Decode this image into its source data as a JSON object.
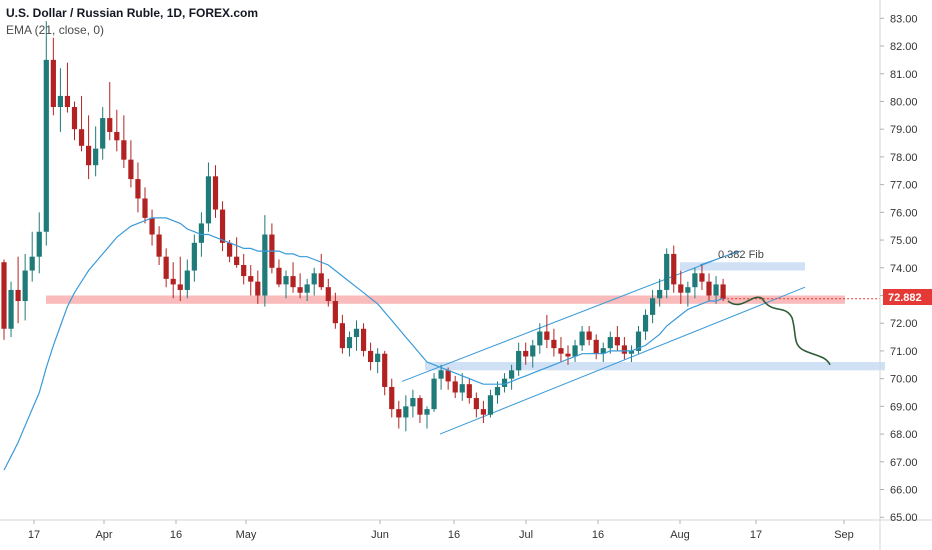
{
  "header": {
    "title": "U.S. Dollar / Russian Ruble, 1D, FOREX.com",
    "indicator": "EMA (21, close, 0)"
  },
  "price_tag": {
    "value": "72.882",
    "color": "#e53935"
  },
  "annotations": {
    "fib_label": "0.382 Fib"
  },
  "colors": {
    "up": "#1f7a7a",
    "down": "#b22222",
    "ema": "#3a9ad9",
    "support_zone": "#f8b4b4",
    "demand_zone": "#c8dcf5",
    "projection": "#2e5c35"
  },
  "chart_data": {
    "type": "candlestick",
    "title": "U.S. Dollar / Russian Ruble, 1D, FOREX.com",
    "x_tick_labels": [
      "17",
      "Apr",
      "16",
      "May",
      "Jun",
      "16",
      "Jul",
      "16",
      "Aug",
      "17",
      "Sep"
    ],
    "y_ticks": [
      65,
      66,
      67,
      68,
      69,
      70,
      71,
      72,
      73,
      74,
      75,
      76,
      77,
      78,
      79,
      80,
      81,
      82,
      83
    ],
    "ylim": [
      64.9,
      83.3
    ],
    "series": [
      {
        "name": "USD/RUB",
        "ohlc": [
          [
            74.2,
            74.3,
            71.4,
            71.8
          ],
          [
            71.8,
            73.5,
            71.5,
            73.2
          ],
          [
            73.2,
            74.4,
            72.0,
            72.8
          ],
          [
            72.8,
            74.5,
            72.1,
            73.9
          ],
          [
            73.9,
            75.3,
            73.5,
            74.4
          ],
          [
            74.4,
            76.0,
            73.8,
            75.3
          ],
          [
            75.3,
            82.9,
            74.8,
            81.5
          ],
          [
            81.5,
            82.3,
            79.5,
            79.8
          ],
          [
            79.8,
            81.2,
            78.9,
            80.2
          ],
          [
            80.2,
            81.4,
            79.6,
            79.8
          ],
          [
            79.8,
            80.0,
            78.6,
            79.0
          ],
          [
            79.0,
            80.2,
            78.2,
            78.4
          ],
          [
            78.4,
            79.5,
            77.2,
            77.7
          ],
          [
            77.7,
            79.1,
            77.3,
            78.3
          ],
          [
            78.3,
            79.8,
            77.9,
            79.4
          ],
          [
            79.4,
            80.7,
            78.6,
            78.9
          ],
          [
            78.9,
            79.7,
            78.2,
            78.6
          ],
          [
            78.6,
            79.5,
            77.6,
            77.9
          ],
          [
            77.9,
            78.6,
            76.9,
            77.2
          ],
          [
            77.2,
            77.8,
            76.0,
            76.5
          ],
          [
            76.5,
            76.9,
            75.6,
            75.8
          ],
          [
            75.8,
            76.1,
            74.8,
            75.2
          ],
          [
            75.2,
            75.5,
            74.1,
            74.4
          ],
          [
            74.4,
            74.7,
            73.3,
            73.6
          ],
          [
            73.6,
            74.2,
            72.9,
            73.4
          ],
          [
            73.4,
            74.4,
            72.8,
            73.2
          ],
          [
            73.2,
            74.3,
            72.9,
            73.9
          ],
          [
            73.9,
            75.2,
            73.5,
            74.9
          ],
          [
            74.9,
            76.0,
            74.4,
            75.6
          ],
          [
            75.6,
            77.8,
            75.3,
            77.3
          ],
          [
            77.3,
            77.7,
            75.8,
            76.1
          ],
          [
            76.1,
            76.4,
            74.6,
            74.9
          ],
          [
            74.9,
            75.0,
            74.2,
            74.4
          ],
          [
            74.4,
            75.1,
            74.0,
            74.1
          ],
          [
            74.1,
            74.5,
            73.4,
            73.7
          ],
          [
            73.7,
            74.1,
            73.0,
            73.5
          ],
          [
            73.5,
            73.9,
            72.7,
            73.0
          ],
          [
            73.0,
            75.9,
            72.6,
            75.2
          ],
          [
            75.2,
            75.6,
            73.8,
            74.0
          ],
          [
            74.0,
            74.3,
            73.3,
            73.4
          ],
          [
            73.4,
            73.9,
            72.9,
            73.7
          ],
          [
            73.7,
            74.2,
            73.1,
            73.3
          ],
          [
            73.3,
            73.8,
            72.9,
            73.1
          ],
          [
            73.1,
            73.6,
            72.8,
            73.4
          ],
          [
            73.4,
            74.0,
            73.0,
            73.8
          ],
          [
            73.8,
            74.5,
            73.2,
            73.3
          ],
          [
            73.3,
            73.6,
            72.6,
            72.8
          ],
          [
            72.8,
            73.1,
            71.8,
            72.0
          ],
          [
            72.0,
            72.3,
            70.9,
            71.1
          ],
          [
            71.1,
            71.7,
            70.8,
            71.5
          ],
          [
            71.5,
            72.1,
            71.0,
            71.8
          ],
          [
            71.8,
            72.0,
            70.8,
            71.0
          ],
          [
            71.0,
            71.3,
            70.3,
            70.6
          ],
          [
            70.6,
            71.1,
            70.2,
            70.9
          ],
          [
            70.9,
            71.0,
            69.4,
            69.7
          ],
          [
            69.7,
            70.0,
            68.6,
            68.9
          ],
          [
            68.9,
            69.2,
            68.2,
            68.6
          ],
          [
            68.6,
            69.4,
            68.1,
            69.0
          ],
          [
            69.0,
            69.6,
            68.6,
            69.3
          ],
          [
            69.3,
            69.4,
            68.4,
            68.7
          ],
          [
            68.7,
            69.0,
            68.2,
            68.9
          ],
          [
            68.9,
            70.2,
            68.8,
            70.0
          ],
          [
            70.0,
            70.5,
            69.6,
            70.3
          ],
          [
            70.3,
            70.4,
            69.6,
            69.9
          ],
          [
            69.9,
            70.1,
            69.3,
            69.5
          ],
          [
            69.5,
            70.2,
            69.2,
            69.8
          ],
          [
            69.8,
            70.0,
            69.1,
            69.3
          ],
          [
            69.3,
            69.5,
            68.6,
            68.9
          ],
          [
            68.9,
            69.2,
            68.4,
            68.7
          ],
          [
            68.7,
            69.6,
            68.6,
            69.4
          ],
          [
            69.4,
            69.9,
            69.1,
            69.7
          ],
          [
            69.7,
            70.2,
            69.5,
            70.0
          ],
          [
            70.0,
            70.5,
            69.6,
            70.3
          ],
          [
            70.3,
            71.3,
            70.1,
            71.0
          ],
          [
            71.0,
            71.3,
            70.5,
            70.8
          ],
          [
            70.8,
            71.4,
            70.4,
            71.2
          ],
          [
            71.2,
            72.0,
            70.9,
            71.7
          ],
          [
            71.7,
            72.3,
            71.1,
            71.4
          ],
          [
            71.4,
            71.8,
            70.8,
            71.1
          ],
          [
            71.1,
            71.5,
            70.6,
            70.9
          ],
          [
            70.9,
            71.2,
            70.5,
            70.8
          ],
          [
            70.8,
            71.4,
            70.6,
            71.2
          ],
          [
            71.2,
            71.9,
            71.0,
            71.7
          ],
          [
            71.7,
            71.9,
            71.2,
            71.4
          ],
          [
            71.4,
            71.6,
            70.7,
            70.9
          ],
          [
            70.9,
            71.3,
            70.6,
            71.1
          ],
          [
            71.1,
            71.7,
            70.9,
            71.5
          ],
          [
            71.5,
            71.9,
            71.0,
            71.2
          ],
          [
            71.2,
            71.5,
            70.7,
            70.9
          ],
          [
            70.9,
            71.2,
            70.6,
            71.0
          ],
          [
            71.0,
            71.9,
            70.9,
            71.7
          ],
          [
            71.7,
            72.5,
            71.4,
            72.3
          ],
          [
            72.3,
            73.2,
            72.0,
            72.9
          ],
          [
            72.9,
            73.6,
            72.6,
            73.2
          ],
          [
            73.2,
            74.7,
            72.9,
            74.5
          ],
          [
            74.5,
            74.8,
            73.1,
            73.4
          ],
          [
            73.4,
            73.9,
            72.7,
            73.1
          ],
          [
            73.1,
            73.5,
            72.6,
            73.3
          ],
          [
            73.3,
            74.0,
            72.9,
            73.8
          ],
          [
            73.8,
            74.1,
            73.2,
            73.5
          ],
          [
            73.5,
            73.8,
            72.8,
            73.0
          ],
          [
            73.0,
            73.7,
            72.7,
            73.4
          ],
          [
            73.4,
            73.6,
            72.8,
            72.882
          ]
        ]
      },
      {
        "name": "EMA (21, close, 0)",
        "values": [
          66.7,
          67.2,
          67.7,
          68.3,
          68.9,
          69.5,
          70.4,
          71.2,
          71.9,
          72.6,
          73.1,
          73.5,
          73.9,
          74.2,
          74.5,
          74.8,
          75.1,
          75.3,
          75.5,
          75.6,
          75.7,
          75.8,
          75.8,
          75.8,
          75.7,
          75.6,
          75.4,
          75.3,
          75.2,
          75.2,
          75.1,
          75.0,
          74.9,
          74.8,
          74.7,
          74.7,
          74.6,
          74.6,
          74.6,
          74.6,
          74.5,
          74.5,
          74.4,
          74.4,
          74.3,
          74.2,
          74.1,
          73.9,
          73.7,
          73.5,
          73.3,
          73.1,
          72.9,
          72.7,
          72.4,
          72.1,
          71.8,
          71.5,
          71.2,
          70.9,
          70.6,
          70.5,
          70.4,
          70.3,
          70.2,
          70.1,
          70.0,
          69.9,
          69.8,
          69.8,
          69.8,
          69.8,
          69.9,
          70.0,
          70.1,
          70.2,
          70.3,
          70.4,
          70.5,
          70.6,
          70.7,
          70.8,
          70.9,
          70.9,
          70.9,
          70.9,
          71.0,
          71.0,
          71.0,
          71.0,
          71.1,
          71.2,
          71.4,
          71.6,
          71.9,
          72.1,
          72.3,
          72.5,
          72.6,
          72.7,
          72.8,
          72.8,
          72.9
        ]
      }
    ],
    "zones": [
      {
        "type": "support",
        "low": 72.7,
        "high": 73.0
      },
      {
        "type": "demand",
        "low": 70.3,
        "high": 70.6
      },
      {
        "type": "fib",
        "low": 73.9,
        "high": 74.2
      }
    ]
  }
}
